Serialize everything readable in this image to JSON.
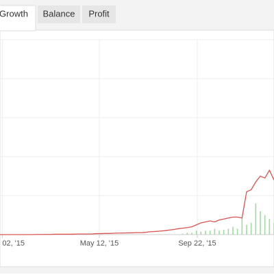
{
  "tabs": [
    "Growth",
    "Balance",
    "Profit"
  ],
  "active_tab": 0,
  "chart_data": {
    "type": "line",
    "series": [
      {
        "type": "line",
        "color": "#d9534f",
        "values": [
          0,
          0,
          0,
          0,
          0,
          0,
          0,
          0,
          0.1,
          0.1,
          0.1,
          0.1,
          0.2,
          0.2,
          0.2,
          0.2,
          0.2,
          0.3,
          0.3,
          0.3,
          0.3,
          0.5,
          0.5,
          0.6,
          0.6,
          0.7,
          0.8,
          0.8,
          0.9,
          0.9,
          1,
          1,
          1.2,
          1.5,
          1.6,
          1.8,
          2,
          2.3,
          2.6,
          3,
          3.3,
          3.6,
          4,
          5,
          6,
          6.5,
          7,
          6.5,
          7.5,
          8,
          8.5,
          9,
          9,
          8.5,
          22,
          23,
          27,
          30,
          29,
          33,
          28
        ]
      },
      {
        "type": "bar",
        "color": "#9fdc9f",
        "values": [
          0,
          0,
          0,
          0,
          0,
          0,
          0,
          0,
          0,
          0,
          0,
          0,
          0,
          0,
          0,
          0,
          0,
          0,
          0,
          0,
          0,
          0,
          0,
          0,
          0,
          0,
          0,
          0,
          0,
          0,
          0,
          0,
          0,
          0,
          0,
          0,
          0,
          0,
          0,
          0,
          0.5,
          1,
          1,
          2,
          1.5,
          2,
          2,
          3,
          2,
          2.5,
          3,
          4,
          3,
          9,
          5,
          6,
          16,
          12,
          10,
          8,
          6
        ]
      }
    ],
    "xlim": [
      0,
      60
    ],
    "xticks": [
      {
        "value": 0.5,
        "label": "02, '15"
      },
      {
        "value": 21.75,
        "label": "May 12, '15"
      },
      {
        "value": 43.2,
        "label": "Sep 22, '15"
      }
    ],
    "ylim": [
      0,
      100
    ],
    "ygrid": [
      0,
      20,
      40,
      60,
      80,
      100
    ],
    "grid": true
  }
}
